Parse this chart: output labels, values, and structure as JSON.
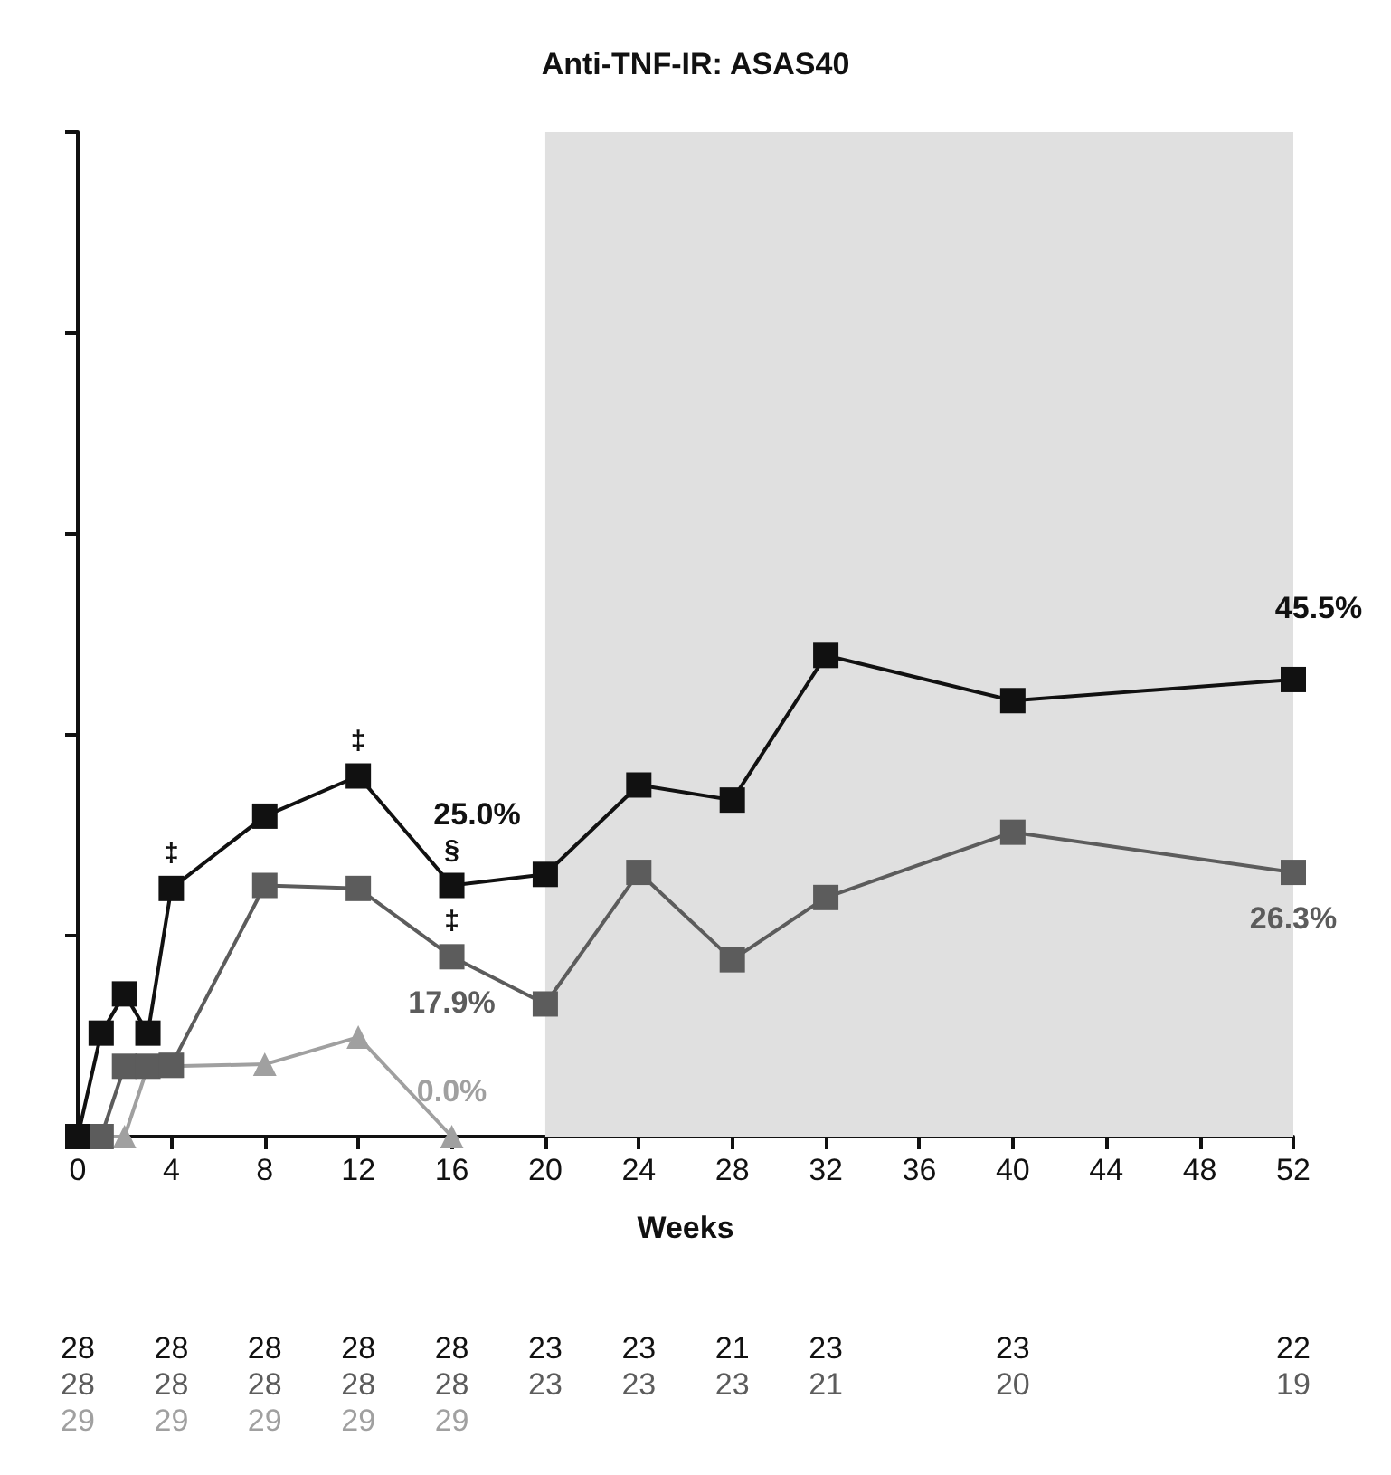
{
  "chart_data": {
    "type": "line",
    "title": "Anti-TNF-IR: ASAS40",
    "xlabel": "Weeks",
    "xlim": [
      0,
      52
    ],
    "xticks": [
      0,
      4,
      8,
      12,
      16,
      20,
      24,
      28,
      32,
      36,
      40,
      44,
      48,
      52
    ],
    "ylim": [
      0,
      100
    ],
    "yticks": [
      {
        "value": 0,
        "label": null
      },
      {
        "value": 20,
        "label": null
      },
      {
        "value": 40,
        "label": null
      },
      {
        "value": 60,
        "label": null
      },
      {
        "value": 80,
        "label": null
      },
      {
        "value": 100,
        "label": null
      }
    ],
    "tick_labels": "x",
    "grid": false,
    "line_style": "solid",
    "bands": [
      {
        "axis": "x",
        "from": 20,
        "to": 52,
        "label": null,
        "color": "#e0e0e0"
      }
    ],
    "series": [
      {
        "color": "#111111",
        "marker": "square",
        "x": [
          0,
          1,
          2,
          3,
          4,
          8,
          12,
          16,
          20,
          24,
          28,
          32,
          40,
          52
        ],
        "values": [
          0,
          10.3,
          14.2,
          10.3,
          24.7,
          31.9,
          35.9,
          25.0,
          26.1,
          35.0,
          33.5,
          47.9,
          43.4,
          45.5
        ],
        "value_labels": [
          null,
          null,
          null,
          null,
          null,
          null,
          null,
          "25.0%",
          null,
          null,
          null,
          null,
          null,
          "45.5%"
        ]
      },
      {
        "color": "#5c5c5c",
        "marker": "square",
        "x": [
          0,
          1,
          2,
          3,
          4,
          8,
          12,
          16,
          20,
          24,
          28,
          32,
          40,
          52
        ],
        "values": [
          0,
          0,
          7.0,
          7.0,
          7.1,
          25.0,
          24.7,
          17.9,
          13.2,
          26.3,
          17.6,
          23.8,
          30.3,
          26.3
        ],
        "value_labels": [
          null,
          null,
          null,
          null,
          null,
          null,
          null,
          "17.9%",
          null,
          null,
          null,
          null,
          null,
          "26.3%"
        ]
      },
      {
        "color": "#a0a0a0",
        "marker": "triangle",
        "x": [
          0,
          1,
          2,
          3,
          4,
          8,
          12,
          16
        ],
        "values": [
          0,
          0,
          0,
          7.0,
          7.0,
          7.2,
          9.9,
          0
        ],
        "value_labels": [
          null,
          null,
          null,
          null,
          null,
          null,
          null,
          "0.0%"
        ]
      }
    ],
    "annotations": [
      {
        "text": "‡",
        "x": 4,
        "y": 24.7
      },
      {
        "text": "‡",
        "x": 12,
        "y": 35.9
      },
      {
        "text": "§",
        "x": 16,
        "y": 25.0
      },
      {
        "text": "‡",
        "x": 16,
        "y": 17.9
      },
      "28 28 28 28 28 23 23 21 23 23 22",
      "28 28 28 28 28 23 23 23 21 20 19",
      "29 29 29 29 29"
    ]
  }
}
